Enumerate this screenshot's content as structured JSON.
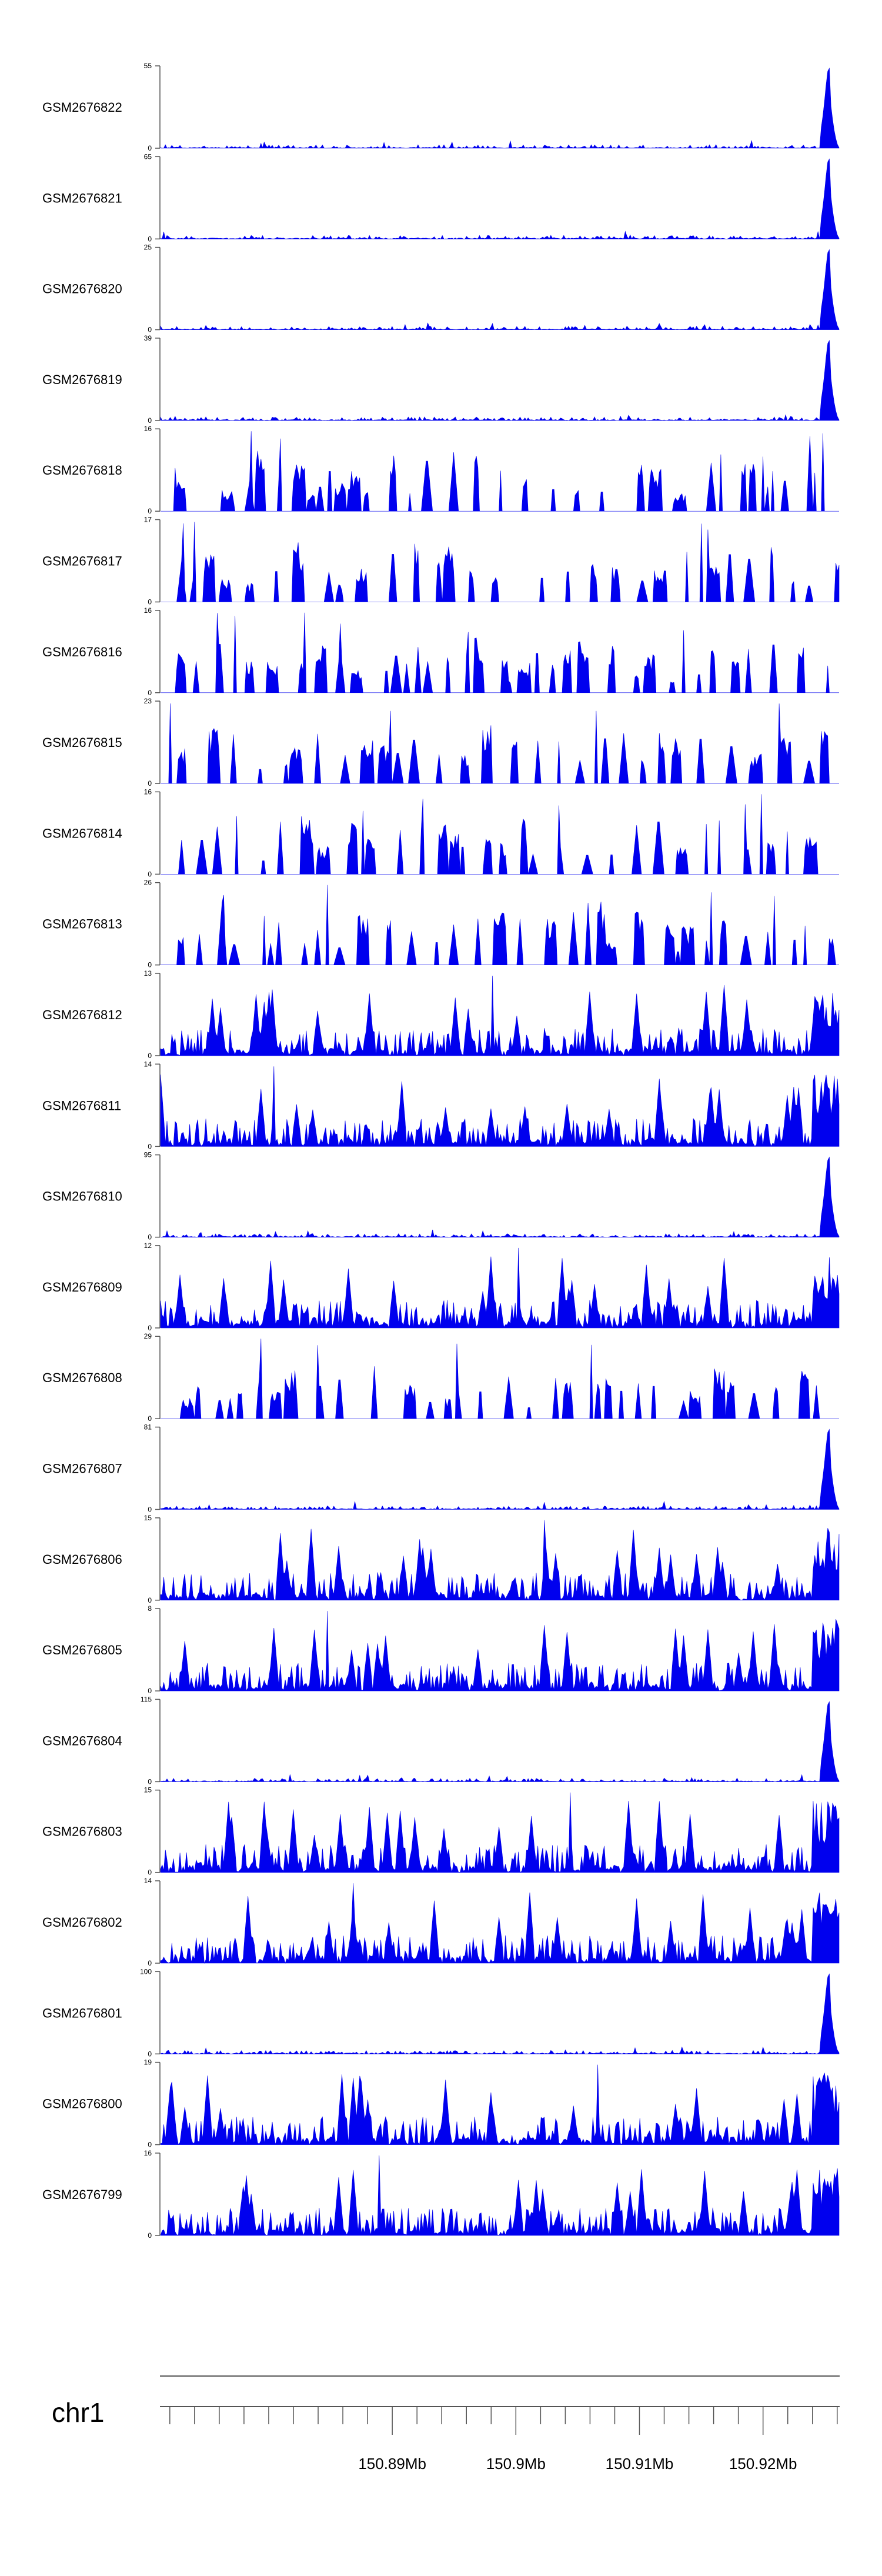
{
  "chart_data": {
    "type": "area",
    "title": "",
    "colors": {
      "signal": "#0000ee",
      "axis": "#555555",
      "text": "#000000"
    },
    "tracks": [
      {
        "name": "GSM2676822",
        "ymin": "0",
        "ymax": "55",
        "max": 55,
        "profile": "tail",
        "seed": 1
      },
      {
        "name": "GSM2676821",
        "ymin": "0",
        "ymax": "65",
        "max": 65,
        "profile": "tail",
        "seed": 2
      },
      {
        "name": "GSM2676820",
        "ymin": "0",
        "ymax": "25",
        "max": 25,
        "profile": "tail",
        "seed": 3
      },
      {
        "name": "GSM2676819",
        "ymin": "0",
        "ymax": "39",
        "max": 39,
        "profile": "tail",
        "seed": 4
      },
      {
        "name": "GSM2676818",
        "ymin": "0",
        "ymax": "16",
        "max": 16,
        "profile": "spiky",
        "seed": 5
      },
      {
        "name": "GSM2676817",
        "ymin": "0",
        "ymax": "17",
        "max": 17,
        "profile": "spiky",
        "seed": 6
      },
      {
        "name": "GSM2676816",
        "ymin": "0",
        "ymax": "16",
        "max": 16,
        "profile": "spiky",
        "seed": 7
      },
      {
        "name": "GSM2676815",
        "ymin": "0",
        "ymax": "23",
        "max": 23,
        "profile": "spiky",
        "seed": 8
      },
      {
        "name": "GSM2676814",
        "ymin": "0",
        "ymax": "16",
        "max": 16,
        "profile": "spiky",
        "seed": 9
      },
      {
        "name": "GSM2676813",
        "ymin": "0",
        "ymax": "26",
        "max": 26,
        "profile": "spiky",
        "seed": 10
      },
      {
        "name": "GSM2676812",
        "ymin": "0",
        "ymax": "13",
        "max": 13,
        "profile": "dense",
        "seed": 11
      },
      {
        "name": "GSM2676811",
        "ymin": "0",
        "ymax": "14",
        "max": 14,
        "profile": "dense",
        "seed": 12
      },
      {
        "name": "GSM2676810",
        "ymin": "0",
        "ymax": "95",
        "max": 95,
        "profile": "tail",
        "seed": 13
      },
      {
        "name": "GSM2676809",
        "ymin": "0",
        "ymax": "12",
        "max": 12,
        "profile": "dense",
        "seed": 14
      },
      {
        "name": "GSM2676808",
        "ymin": "0",
        "ymax": "29",
        "max": 29,
        "profile": "spiky",
        "seed": 15
      },
      {
        "name": "GSM2676807",
        "ymin": "0",
        "ymax": "81",
        "max": 81,
        "profile": "tail",
        "seed": 16
      },
      {
        "name": "GSM2676806",
        "ymin": "0",
        "ymax": "15",
        "max": 15,
        "profile": "dense",
        "seed": 17
      },
      {
        "name": "GSM2676805",
        "ymin": "0",
        "ymax": "8",
        "max": 8,
        "profile": "dense",
        "seed": 18
      },
      {
        "name": "GSM2676804",
        "ymin": "0",
        "ymax": "115",
        "max": 115,
        "profile": "tail",
        "seed": 19
      },
      {
        "name": "GSM2676803",
        "ymin": "0",
        "ymax": "15",
        "max": 15,
        "profile": "dense",
        "seed": 20
      },
      {
        "name": "GSM2676802",
        "ymin": "0",
        "ymax": "14",
        "max": 14,
        "profile": "dense",
        "seed": 21
      },
      {
        "name": "GSM2676801",
        "ymin": "0",
        "ymax": "100",
        "max": 100,
        "profile": "tail",
        "seed": 22
      },
      {
        "name": "GSM2676800",
        "ymin": "0",
        "ymax": "19",
        "max": 19,
        "profile": "dense",
        "seed": 23
      },
      {
        "name": "GSM2676799",
        "ymin": "0",
        "ymax": "16",
        "max": 16,
        "profile": "dense",
        "seed": 24
      }
    ],
    "genome_axis": {
      "chromosome": "chr1",
      "xlim": [
        150.8712,
        150.9262
      ],
      "minor_tick_step": 0.002,
      "major_ticks": [
        {
          "value": 150.89,
          "label": "150.89Mb"
        },
        {
          "value": 150.9,
          "label": "150.9Mb"
        },
        {
          "value": 150.91,
          "label": "150.91Mb"
        },
        {
          "value": 150.92,
          "label": "150.92Mb"
        }
      ]
    }
  }
}
